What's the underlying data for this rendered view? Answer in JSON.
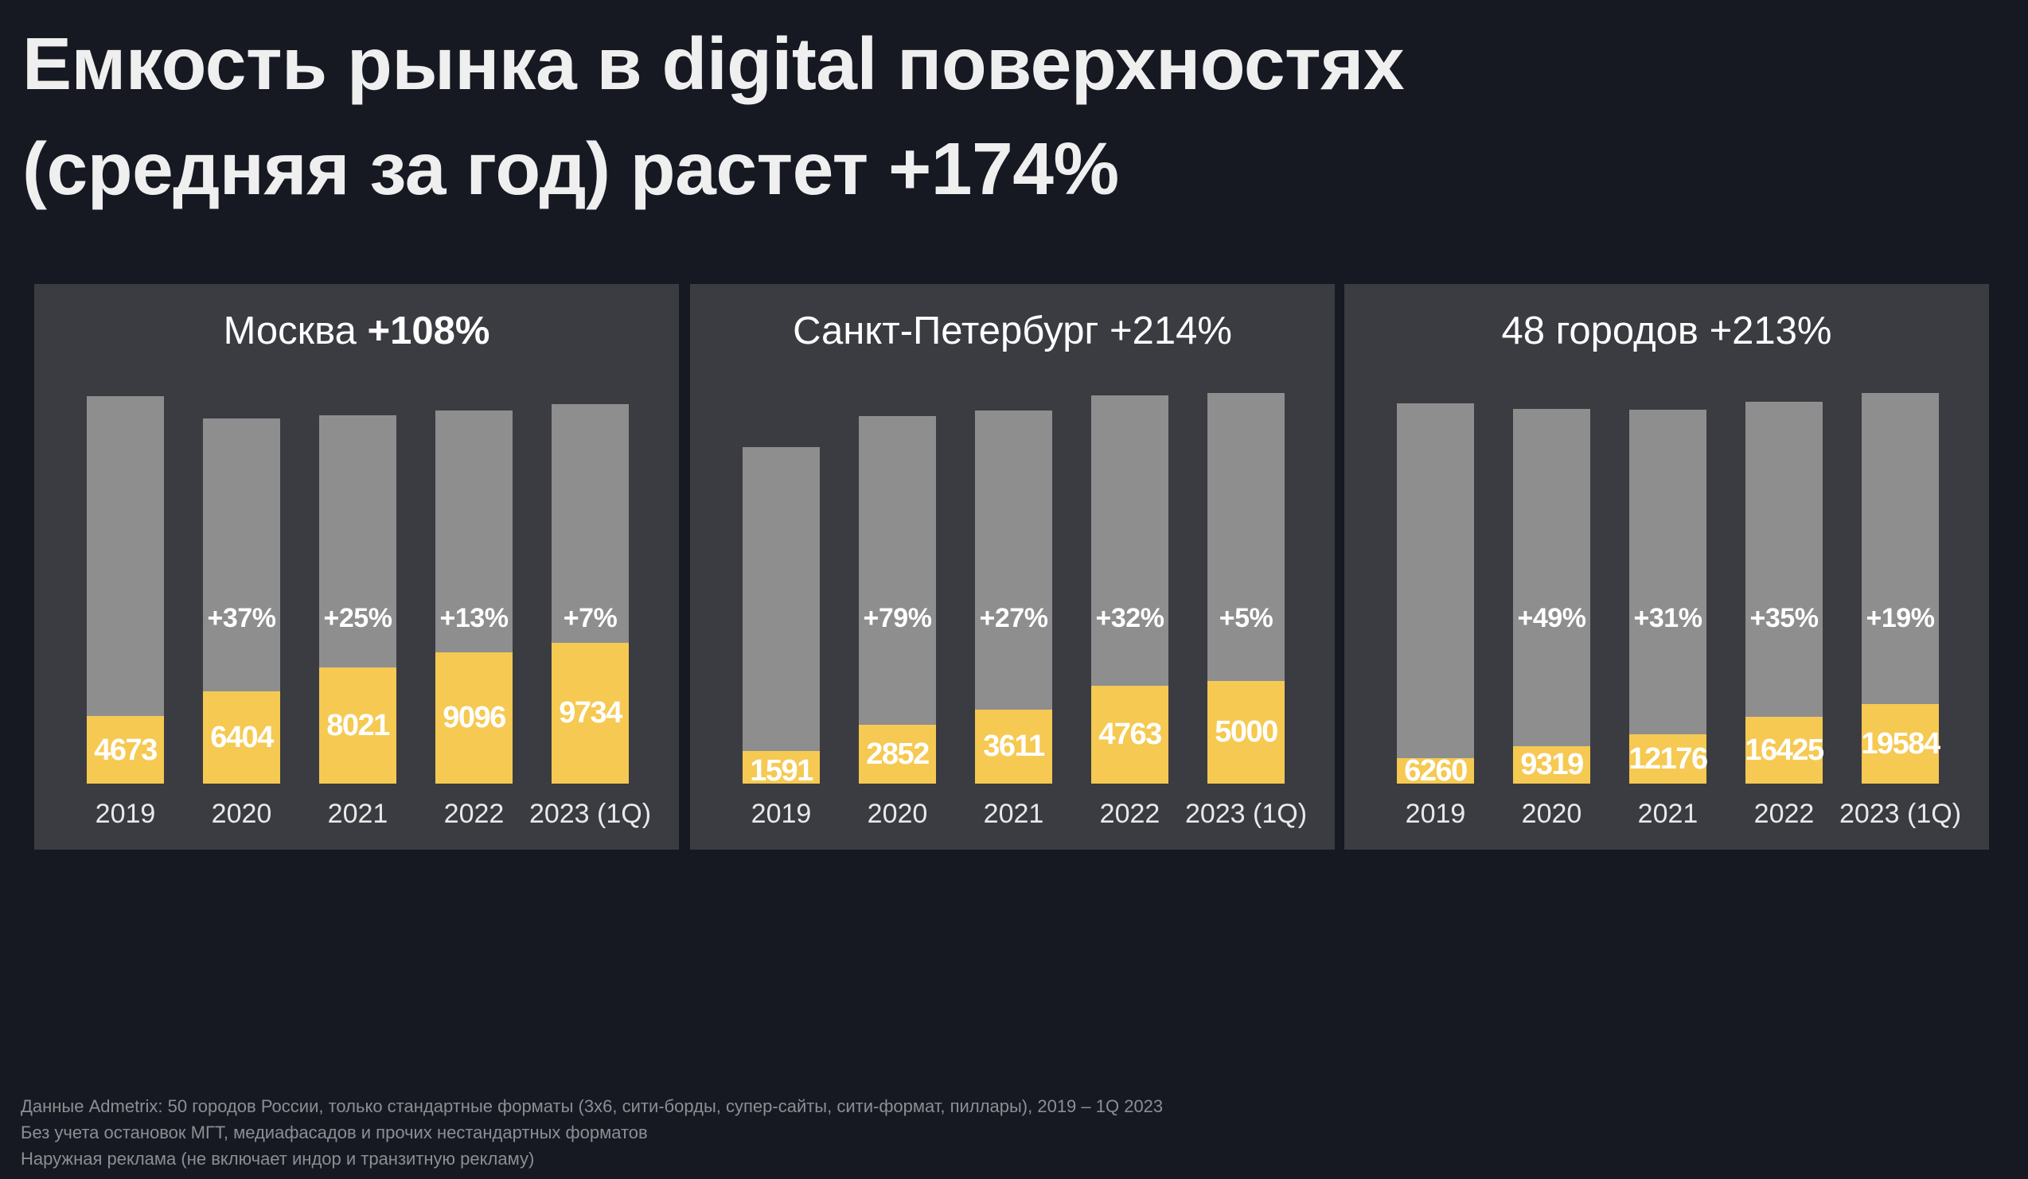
{
  "title": {
    "line1": "Емкость рынка в digital поверхностях",
    "line2": "(средняя за год) растет +174%"
  },
  "colors": {
    "background": "#161922",
    "panel": "#3b3c42",
    "digital": "#f5c952",
    "total": "#8e8e8e"
  },
  "chart_data": [
    {
      "type": "bar",
      "stacked": "overlay",
      "title": "Москва",
      "title_highlight": "+108%",
      "categories": [
        "2019",
        "2020",
        "2021",
        "2022",
        "2023 (1Q)"
      ],
      "series": [
        {
          "name": "digital",
          "values": [
            4673,
            6404,
            8021,
            9096,
            9734
          ]
        },
        {
          "name": "total (estimated, unlabeled)",
          "values": [
            26800,
            25250,
            25470,
            25800,
            26230
          ]
        }
      ],
      "growth_labels": [
        "",
        "+37%",
        "+25%",
        "+13%",
        "+7%"
      ],
      "ylim": [
        0,
        27000
      ],
      "grid": false
    },
    {
      "type": "bar",
      "stacked": "overlay",
      "title": "Санкт-Петербург +214%",
      "title_highlight": "",
      "categories": [
        "2019",
        "2020",
        "2021",
        "2022",
        "2023 (1Q)"
      ],
      "series": [
        {
          "name": "digital",
          "values": [
            1591,
            2852,
            3611,
            4763,
            5000
          ]
        },
        {
          "name": "total (estimated, unlabeled)",
          "values": [
            16380,
            17870,
            18140,
            18870,
            19000
          ]
        }
      ],
      "growth_labels": [
        "",
        "+79%",
        "+27%",
        "+32%",
        "+5%"
      ],
      "ylim": [
        0,
        19000
      ],
      "grid": false
    },
    {
      "type": "bar",
      "stacked": "overlay",
      "title": "48 городов +213%",
      "title_highlight": "",
      "categories": [
        "2019",
        "2020",
        "2021",
        "2022",
        "2023 (1Q)"
      ],
      "series": [
        {
          "name": "digital",
          "values": [
            6260,
            9319,
            12176,
            16425,
            19584
          ]
        },
        {
          "name": "total (estimated, unlabeled)",
          "values": [
            93850,
            92530,
            92310,
            94290,
            96480
          ]
        }
      ],
      "growth_labels": [
        "",
        "+49%",
        "+31%",
        "+35%",
        "+19%"
      ],
      "ylim": [
        0,
        96500
      ],
      "grid": false
    }
  ],
  "footer": {
    "line1": "Данные Admetrix: 50 городов России, только стандартные форматы (3х6, сити-борды, супер-сайты, сити-формат, пиллары), 2019 – 1Q 2023",
    "line2": "Без учета остановок МГТ, медиафасадов и прочих нестандартных форматов",
    "line3": "Наружная реклама (не включает индор и транзитную рекламу)"
  }
}
